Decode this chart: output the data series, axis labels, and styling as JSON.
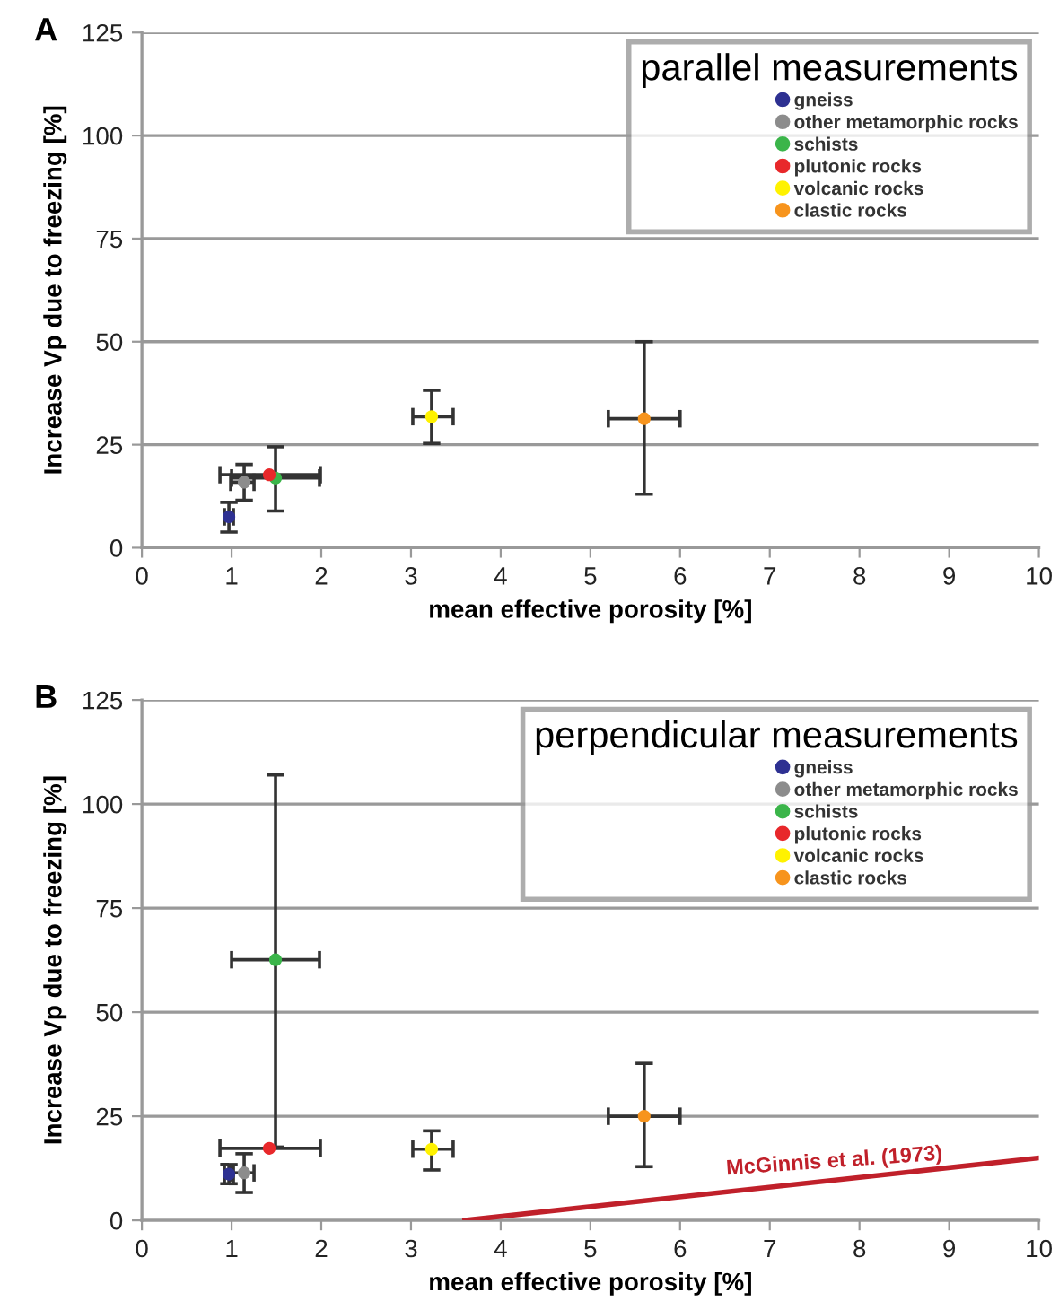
{
  "chart_data": [
    {
      "type": "scatter",
      "annotations": [
        "A"
      ],
      "xlabel": "mean effective porosity [%]",
      "ylabel": "Increase Vp due to freezing [%]",
      "legend_title": "parallel measurements",
      "legend": "top right",
      "grid": "y",
      "marker": "circle",
      "xlim": [
        0,
        10
      ],
      "xticks": [
        0,
        1,
        2,
        3,
        4,
        5,
        6,
        7,
        8,
        9,
        10
      ],
      "ylim": [
        0,
        125
      ],
      "yticks": [
        0,
        25,
        50,
        75,
        100,
        125
      ],
      "series": [
        {
          "name": "gneiss",
          "color": "#2e3192",
          "x": [
            0.97
          ],
          "values": [
            7.5
          ],
          "errors": [
            [
              3.8,
              11
            ]
          ],
          "xerrors": [
            [
              0.92,
              1.02
            ]
          ]
        },
        {
          "name": "other metamorphic rocks",
          "color": "#8c8c8c",
          "x": [
            1.14
          ],
          "values": [
            15.9
          ],
          "errors": [
            [
              11.5,
              20.2
            ]
          ],
          "xerrors": [
            [
              0.99,
              1.25
            ]
          ]
        },
        {
          "name": "schists",
          "color": "#3bb54a",
          "x": [
            1.49
          ],
          "values": [
            16.9
          ],
          "errors": [
            [
              8.9,
              24.5
            ]
          ],
          "xerrors": [
            [
              1.0,
              1.98
            ]
          ]
        },
        {
          "name": "plutonic rocks",
          "color": "#e8282b",
          "x": [
            1.42
          ],
          "values": [
            17.7
          ],
          "xerrors": [
            [
              0.87,
              1.99
            ]
          ]
        },
        {
          "name": "volcanic rocks",
          "color": "#fff200",
          "x": [
            3.23
          ],
          "values": [
            31.8
          ],
          "errors": [
            [
              25.3,
              38.2
            ]
          ],
          "xerrors": [
            [
              3.02,
              3.47
            ]
          ]
        },
        {
          "name": "clastic rocks",
          "color": "#f7941d",
          "x": [
            5.6
          ],
          "values": [
            31.3
          ],
          "errors": [
            [
              13,
              50
            ]
          ],
          "xerrors": [
            [
              5.2,
              6.0
            ]
          ]
        }
      ]
    },
    {
      "type": "scatter",
      "annotations": [
        "B"
      ],
      "xlabel": "mean effective porosity [%]",
      "ylabel": "Increase Vp due to freezing [%]",
      "legend_title": "perpendicular measurements",
      "legend": "top right",
      "grid": "y",
      "marker": "circle",
      "xlim": [
        0,
        10
      ],
      "xticks": [
        0,
        1,
        2,
        3,
        4,
        5,
        6,
        7,
        8,
        9,
        10
      ],
      "ylim": [
        0,
        125
      ],
      "yticks": [
        0,
        25,
        50,
        75,
        100,
        125
      ],
      "series": [
        {
          "name": "gneiss",
          "color": "#2e3192",
          "x": [
            0.97
          ],
          "values": [
            11.1
          ],
          "errors": [
            [
              8.8,
              13.4
            ]
          ],
          "xerrors": [
            [
              0.92,
              1.02
            ]
          ]
        },
        {
          "name": "other metamorphic rocks",
          "color": "#8c8c8c",
          "x": [
            1.14
          ],
          "values": [
            11.4
          ],
          "errors": [
            [
              6.7,
              16
            ]
          ],
          "xerrors": [
            [
              0.99,
              1.25
            ]
          ]
        },
        {
          "name": "schists",
          "color": "#3bb54a",
          "x": [
            1.49
          ],
          "values": [
            62.6
          ],
          "errors": [
            [
              17.6,
              107
            ]
          ],
          "xerrors": [
            [
              1.0,
              1.98
            ]
          ]
        },
        {
          "name": "plutonic rocks",
          "color": "#e8282b",
          "x": [
            1.42
          ],
          "values": [
            17.3
          ],
          "xerrors": [
            [
              0.87,
              1.99
            ]
          ]
        },
        {
          "name": "volcanic rocks",
          "color": "#fff200",
          "x": [
            3.23
          ],
          "values": [
            17.1
          ],
          "errors": [
            [
              12.1,
              21.5
            ]
          ],
          "xerrors": [
            [
              3.02,
              3.47
            ]
          ]
        },
        {
          "name": "clastic rocks",
          "color": "#f7941d",
          "x": [
            5.6
          ],
          "values": [
            25
          ],
          "errors": [
            [
              12.9,
              37.7
            ]
          ],
          "xerrors": [
            [
              5.2,
              6.0
            ]
          ]
        },
        {
          "name": "McGinnis et al. (1973)",
          "type": "line",
          "color": "#c0202a",
          "x": [
            3.6,
            10
          ],
          "values": [
            0,
            15
          ],
          "marker": "none"
        }
      ]
    }
  ]
}
